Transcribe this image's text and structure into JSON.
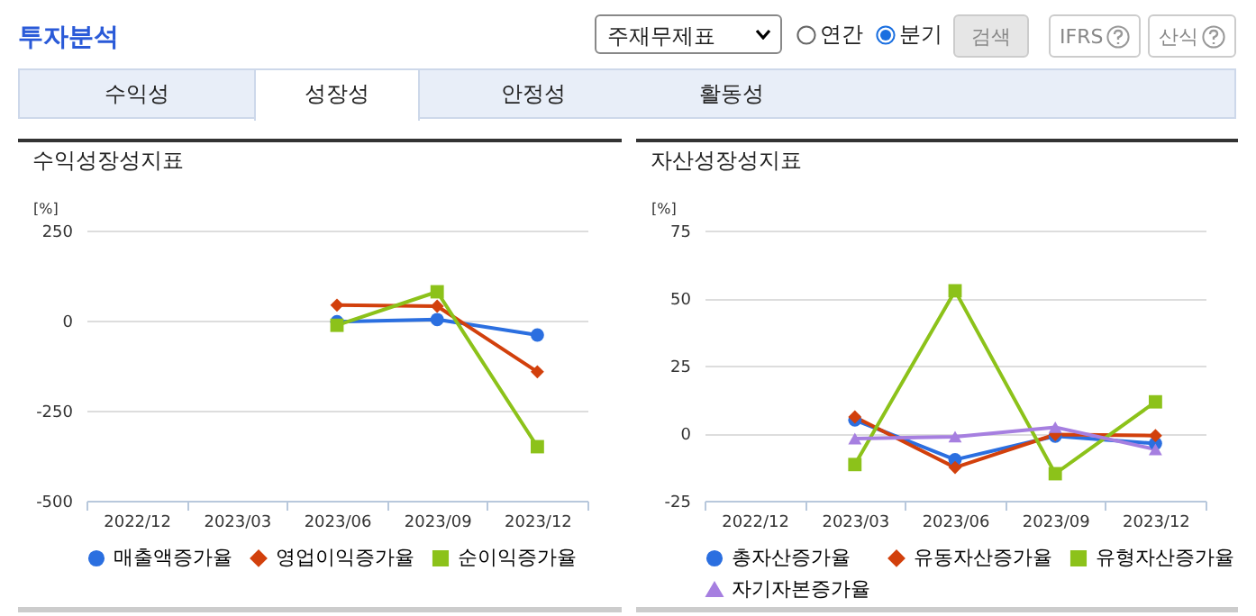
{
  "chart_data": [
    {
      "type": "other",
      "title": "투자분석",
      "annotations": [
        "주재무제표",
        "연간",
        "분기",
        "검색",
        "IFRS",
        "산식",
        "수익성",
        "성장성",
        "안정성",
        "활동성"
      ]
    },
    {
      "type": "line",
      "title": "수익성장성지표",
      "ylabel": "[%]",
      "categories": [
        "2022/12",
        "2023/03",
        "2023/06",
        "2023/09",
        "2023/12"
      ],
      "ylim": [
        -500,
        250
      ],
      "yticks": [
        -500,
        -250,
        0,
        250
      ],
      "grid": "y",
      "legend": "bottom",
      "series": [
        {
          "name": "매출액증가율",
          "color": "#2b6fe0",
          "marker": "circle",
          "values": [
            null,
            null,
            -3,
            3,
            -40
          ]
        },
        {
          "name": "영업이익증가율",
          "color": "#d2400c",
          "marker": "diamond",
          "values": [
            null,
            null,
            43,
            40,
            -142
          ]
        },
        {
          "name": "순이익증가율",
          "color": "#8cc21a",
          "marker": "square",
          "values": [
            null,
            null,
            -13,
            80,
            -350
          ]
        }
      ]
    },
    {
      "type": "line",
      "title": "자산성장성지표",
      "ylabel": "[%]",
      "categories": [
        "2022/12",
        "2023/03",
        "2023/06",
        "2023/09",
        "2023/12"
      ],
      "ylim": [
        -25,
        75
      ],
      "yticks": [
        -25,
        0,
        25,
        50,
        75
      ],
      "grid": "y",
      "legend": "bottom",
      "series": [
        {
          "name": "총자산증가율",
          "color": "#2b6fe0",
          "marker": "circle",
          "values": [
            null,
            4.9,
            -9.8,
            -1.1,
            -3.8
          ]
        },
        {
          "name": "유동자산증가율",
          "color": "#d2400c",
          "marker": "diamond",
          "values": [
            null,
            6,
            -12.7,
            -0.5,
            -0.9
          ]
        },
        {
          "name": "유형자산증가율",
          "color": "#8cc21a",
          "marker": "square",
          "values": [
            null,
            -11.6,
            52.7,
            -15,
            11.6
          ]
        },
        {
          "name": "자기자본증가율",
          "color": "#a67fe0",
          "marker": "triangle",
          "values": [
            null,
            -2,
            -1.3,
            2.2,
            -6
          ]
        }
      ]
    }
  ]
}
